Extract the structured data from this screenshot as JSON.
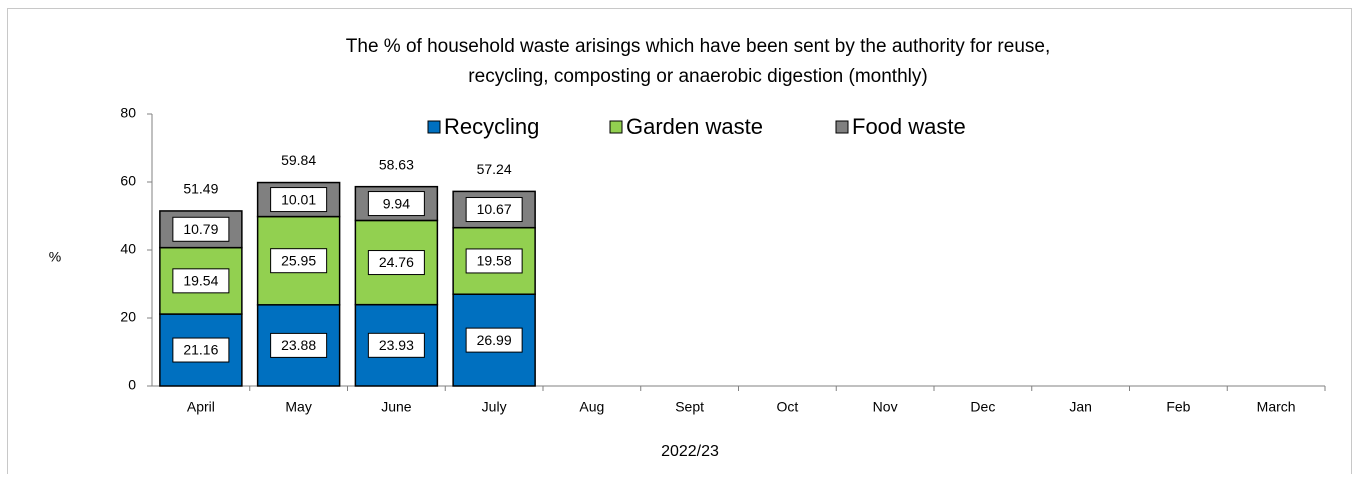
{
  "chart_data": {
    "type": "stacked_bar",
    "title": [
      "The % of household waste arisings which have been sent by the authority for reuse,",
      "recycling, composting or anaerobic digestion (monthly)"
    ],
    "x_label": "2022/23",
    "y_label": "%",
    "categories": [
      "April",
      "May",
      "June",
      "July",
      "Aug",
      "Sept",
      "Oct",
      "Nov",
      "Dec",
      "Jan",
      "Feb",
      "March"
    ],
    "series": [
      {
        "name": "Recycling",
        "color": "#0070c0",
        "values": [
          21.16,
          23.88,
          23.93,
          26.99,
          null,
          null,
          null,
          null,
          null,
          null,
          null,
          null
        ]
      },
      {
        "name": "Garden waste",
        "color": "#92d050",
        "values": [
          19.54,
          25.95,
          24.76,
          19.58,
          null,
          null,
          null,
          null,
          null,
          null,
          null,
          null
        ]
      },
      {
        "name": "Food waste",
        "color": "#808080",
        "values": [
          10.79,
          10.01,
          9.94,
          10.67,
          null,
          null,
          null,
          null,
          null,
          null,
          null,
          null
        ]
      }
    ],
    "totals": [
      51.49,
      59.84,
      58.63,
      57.24,
      null,
      null,
      null,
      null,
      null,
      null,
      null,
      null
    ],
    "ylim": [
      0,
      80
    ],
    "yticks": [
      0,
      20,
      40,
      60,
      80
    ],
    "legend": "top",
    "grid": false
  }
}
